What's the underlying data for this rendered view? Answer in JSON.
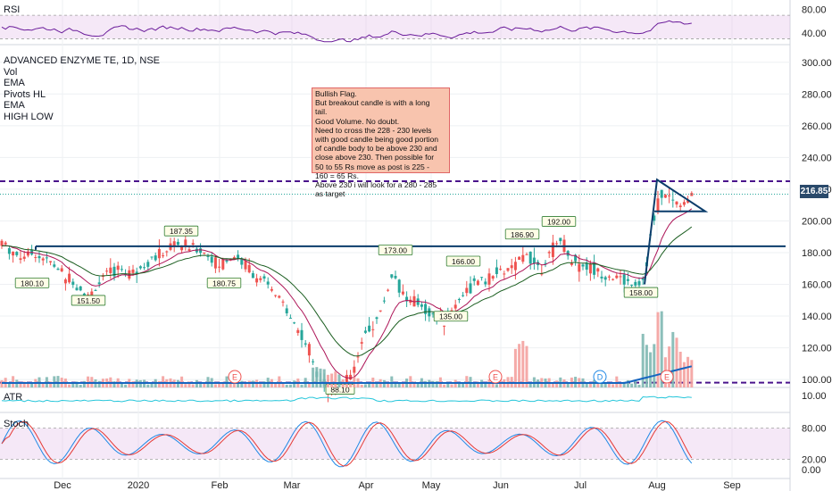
{
  "symbol_title": "ADVANCED ENZYME TE, 1D, NSE",
  "indicators": [
    "Vol",
    "EMA",
    "Pivots HL",
    "EMA",
    "HIGH LOW"
  ],
  "note": {
    "lines": [
      "Bullish Flag.",
      "But breakout candle is with a long",
      "tail.",
      "Good Volume. No doubt.",
      "Need to cross the 228 - 230 levels",
      "with good candle being good portion",
      "of candle body to be above 230 and",
      "close above 230. Then possible for",
      "50 to 55  Rs move as post is 225 -",
      "160 = 65 Rs.",
      "Above 230 i will look for a 280 - 285",
      "as target"
    ]
  },
  "last_price": "216.85",
  "colors": {
    "up": "#26a69a",
    "down": "#ef5350",
    "rsi_line": "#6a1b9a",
    "band": "#e1bee7",
    "dashed": "#4a148c",
    "trend": "#0b3d6b",
    "ema_fast": "#ad1457",
    "ema_slow": "#1b5e20",
    "volume_ma": "#1565c0",
    "stoch_k": "#1e88e5",
    "stoch_d": "#e53935",
    "atr": "#26c6da"
  },
  "chart_data": [
    {
      "pane": "RSI",
      "type": "line",
      "title": "RSI",
      "y_ticks": [
        "80.00",
        "40.00"
      ],
      "band": [
        30,
        70
      ]
    },
    {
      "pane": "price",
      "type": "candlestick",
      "title": "ADVANCED ENZYME TE, 1D, NSE",
      "ylim": [
        95,
        310
      ],
      "y_ticks": [
        "300.00",
        "280.00",
        "260.00",
        "240.00",
        "220.00",
        "200.00",
        "180.00",
        "160.00",
        "140.00",
        "120.00",
        "100.00"
      ],
      "x_ticks": [
        "Dec",
        "2020",
        "Feb",
        "Mar",
        "Apr",
        "May",
        "Jun",
        "Jul",
        "Aug",
        "Sep"
      ],
      "pivot_labels": [
        {
          "text": "180.10",
          "type": "low"
        },
        {
          "text": "151.50",
          "type": "low"
        },
        {
          "text": "187.35",
          "type": "high"
        },
        {
          "text": "180.75",
          "type": "low"
        },
        {
          "text": "88.10",
          "type": "low"
        },
        {
          "text": "173.00",
          "type": "high"
        },
        {
          "text": "166.00",
          "type": "high"
        },
        {
          "text": "135.00",
          "type": "low"
        },
        {
          "text": "186.90",
          "type": "high"
        },
        {
          "text": "192.00",
          "type": "high"
        },
        {
          "text": "158.00",
          "type": "low"
        }
      ],
      "levels": {
        "resistance_dashed": 225,
        "support_dashed": 98,
        "breakout_line": 184,
        "flag_low": 206
      },
      "earnings_markers": [
        "E",
        "E",
        "E",
        "D",
        "E"
      ],
      "last_price": 216.85
    },
    {
      "pane": "ATR",
      "type": "line",
      "title": "ATR",
      "y_ticks": [
        "10.00"
      ]
    },
    {
      "pane": "Stoch",
      "type": "line",
      "title": "Stoch",
      "y_ticks": [
        "80.00",
        "20.00",
        "0.00"
      ],
      "band": [
        20,
        80
      ]
    }
  ]
}
